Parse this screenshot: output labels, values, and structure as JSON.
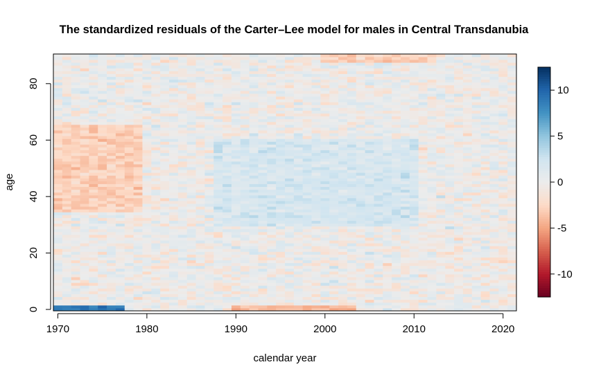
{
  "chart_data": {
    "type": "heatmap",
    "title": "The standardized residuals of the Carter–Lee model for males in Central Transdanubia",
    "xlabel": "calendar year",
    "ylabel": "age",
    "x_ticks": [
      "1970",
      "1980",
      "1990",
      "2000",
      "2010",
      "2020"
    ],
    "y_ticks": [
      "0",
      "20",
      "40",
      "60",
      "80"
    ],
    "colorbar_ticks": [
      "10",
      "5",
      "0",
      "-5",
      "-10"
    ],
    "x_range": [
      1969.5,
      2021.5
    ],
    "y_range": [
      -0.5,
      90.5
    ],
    "color_range": [
      -12.5,
      12.5
    ],
    "colorbar_position": "right",
    "palette": [
      "#67001f",
      "#b2182b",
      "#d6604d",
      "#f4a582",
      "#fddbc7",
      "#ececec",
      "#d1e5f0",
      "#92c5de",
      "#4393c3",
      "#2166ac",
      "#053061"
    ],
    "years_start": 1970,
    "years_end": 2021,
    "ages_start": 0,
    "ages_end": 90,
    "features": [
      {
        "description": "strong positive residuals at age 0",
        "years": [
          1970,
          1977
        ],
        "ages": [
          0,
          1
        ],
        "value": 9
      },
      {
        "description": "negative residuals at age 0",
        "years": [
          1990,
          2003
        ],
        "ages": [
          0,
          1
        ],
        "value": -4
      },
      {
        "description": "negative band ages 35-65",
        "years": [
          1970,
          1979
        ],
        "ages": [
          35,
          65
        ],
        "value": -3
      },
      {
        "description": "positive band ages 30-60",
        "years": [
          1988,
          2010
        ],
        "ages": [
          30,
          60
        ],
        "value": 2
      },
      {
        "description": "negative residuals at oldest ages",
        "years": [
          2000,
          2012
        ],
        "ages": [
          88,
          90
        ],
        "value": -3
      }
    ]
  }
}
